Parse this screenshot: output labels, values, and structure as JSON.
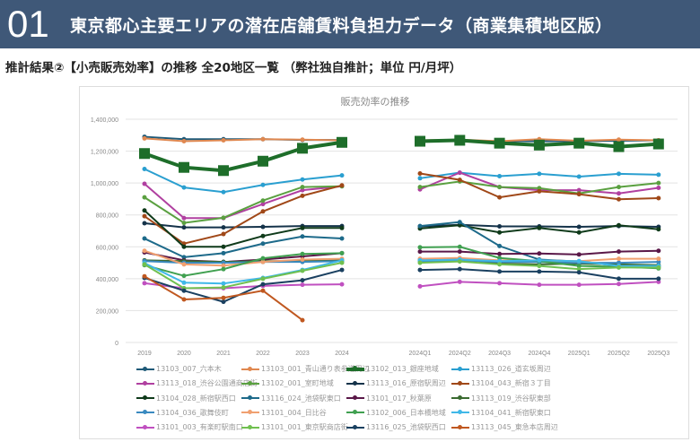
{
  "header": {
    "number": "01",
    "title": "東京都心主要エリアの潜在店舗賃料負担力データ（商業集積地区版）"
  },
  "subtitle": "推計結果②【小売販売効率】の推移 全20地区一覧 （弊社独自推計；単位 円/月坪）",
  "chart_data": {
    "type": "line",
    "title": "販売効率の推移",
    "xlabel": "",
    "ylabel": "",
    "ylim": [
      0,
      1400000
    ],
    "yticks": [
      0,
      200000,
      400000,
      600000,
      800000,
      1000000,
      1200000,
      1400000
    ],
    "ytick_labels": [
      "0",
      "200,000",
      "400,000",
      "600,000",
      "800,000",
      "1,000,000",
      "1,200,000",
      "1,400,000"
    ],
    "grid": true,
    "legend_position": "bottom",
    "groups": [
      {
        "categories": [
          "2019",
          "2020",
          "2021",
          "2022",
          "2023",
          "2024"
        ]
      },
      {
        "categories": [
          "2024Q1",
          "2024Q2",
          "2024Q3",
          "2024Q4",
          "2025Q1",
          "2025Q2",
          "2025Q3"
        ]
      }
    ],
    "series": [
      {
        "name": "13103_007_六本木",
        "color": "#1f5a78",
        "annual": [
          1290000,
          1275000,
          1275000,
          1275000,
          1270000,
          1270000
        ],
        "quarterly": [
          1265000,
          1268000,
          1262000,
          1262000,
          1262000,
          1265000,
          1268000
        ]
      },
      {
        "name": "13103_001_青山通り表参道周辺",
        "color": "#e08850",
        "annual": [
          1280000,
          1262000,
          1268000,
          1275000,
          1272000,
          1268000
        ],
        "quarterly": [
          1268000,
          1272000,
          1262000,
          1275000,
          1265000,
          1272000,
          1268000
        ]
      },
      {
        "name": "13102_013_銀座地域",
        "color": "#1e6e2a",
        "thick": true,
        "annual": [
          1185000,
          1098000,
          1078000,
          1137000,
          1218000,
          1255000
        ],
        "quarterly": [
          1262000,
          1268000,
          1250000,
          1238000,
          1250000,
          1228000,
          1245000
        ]
      },
      {
        "name": "13113_026_道玄坂周辺",
        "color": "#2a9fd0",
        "annual": [
          1088000,
          972000,
          943000,
          988000,
          1022000,
          1048000
        ],
        "quarterly": [
          1030000,
          1065000,
          1043000,
          1058000,
          1040000,
          1058000,
          1052000
        ]
      },
      {
        "name": "13113_018_渋谷公園通商店街",
        "color": "#b040a0",
        "annual": [
          995000,
          780000,
          780000,
          868000,
          955000,
          980000
        ],
        "quarterly": [
          960000,
          1065000,
          975000,
          955000,
          955000,
          935000,
          970000
        ]
      },
      {
        "name": "13102_001_室町地域",
        "color": "#5aa040",
        "annual": [
          910000,
          750000,
          782000,
          890000,
          975000,
          980000
        ],
        "quarterly": [
          975000,
          1010000,
          975000,
          968000,
          935000,
          975000,
          1000000
        ]
      },
      {
        "name": "13113_016_原宿駅周辺",
        "color": "#15334a",
        "annual": [
          748000,
          722000,
          722000,
          725000,
          730000,
          730000
        ],
        "quarterly": [
          728000,
          738000,
          728000,
          728000,
          725000,
          730000,
          725000
        ]
      },
      {
        "name": "13104_043_新宿３丁目",
        "color": "#a04818",
        "annual": [
          792000,
          620000,
          680000,
          822000,
          920000,
          985000
        ],
        "quarterly": [
          1060000,
          1020000,
          910000,
          948000,
          930000,
          898000,
          905000
        ]
      },
      {
        "name": "13104_028_新宿駅西口",
        "color": "#0f3a1a",
        "annual": [
          828000,
          600000,
          600000,
          668000,
          718000,
          718000
        ],
        "quarterly": [
          715000,
          735000,
          690000,
          718000,
          690000,
          735000,
          710000
        ]
      },
      {
        "name": "13116_024_池袋駅東口",
        "color": "#1d6a8a",
        "annual": [
          652000,
          535000,
          560000,
          620000,
          665000,
          652000
        ],
        "quarterly": [
          730000,
          755000,
          605000,
          520000,
          508000,
          480000,
          475000
        ]
      },
      {
        "name": "13101_017_秋葉原",
        "color": "#5a1848",
        "annual": [
          565000,
          515000,
          505000,
          520000,
          540000,
          560000
        ],
        "quarterly": [
          570000,
          570000,
          555000,
          558000,
          552000,
          570000,
          575000
        ]
      },
      {
        "name": "13113_019_渋谷駅東部",
        "color": "#3a6a30",
        "annual": [
          515000,
          510000,
          505000,
          510000,
          510000,
          515000
        ],
        "quarterly": [
          520000,
          525000,
          495000,
          490000,
          495000,
          490000,
          485000
        ]
      },
      {
        "name": "13104_036_歌舞伎町",
        "color": "#3a8ac0",
        "annual": [
          510000,
          500000,
          500000,
          505000,
          505000,
          510000
        ],
        "quarterly": [
          510000,
          515000,
          505000,
          505000,
          500000,
          500000,
          505000
        ]
      },
      {
        "name": "13101_004_日比谷",
        "color": "#f0a070",
        "annual": [
          575000,
          490000,
          482000,
          505000,
          520000,
          525000
        ],
        "quarterly": [
          525000,
          530000,
          515000,
          515000,
          510000,
          525000,
          525000
        ]
      },
      {
        "name": "13102_006_日本橋地域",
        "color": "#40a050",
        "annual": [
          485000,
          418000,
          460000,
          528000,
          555000,
          560000
        ],
        "quarterly": [
          597000,
          600000,
          530000,
          510000,
          480000,
          475000,
          465000
        ]
      },
      {
        "name": "13104_041_新宿駅東口",
        "color": "#40b8e8",
        "annual": [
          498000,
          375000,
          370000,
          405000,
          455000,
          515000
        ],
        "quarterly": [
          515000,
          520000,
          510000,
          515000,
          510000,
          480000,
          480000
        ]
      },
      {
        "name": "13101_003_有楽町駅南口",
        "color": "#c050c0",
        "annual": [
          372000,
          340000,
          340000,
          355000,
          362000,
          365000
        ],
        "quarterly": [
          352000,
          380000,
          372000,
          362000,
          362000,
          367000,
          380000
        ]
      },
      {
        "name": "13101_001_東京駅商店街",
        "color": "#70c050",
        "annual": [
          490000,
          340000,
          345000,
          400000,
          450000,
          500000
        ],
        "quarterly": [
          500000,
          508000,
          490000,
          480000,
          460000,
          470000,
          470000
        ]
      },
      {
        "name": "13116_025_池袋駅西口",
        "color": "#1a4060",
        "annual": [
          405000,
          325000,
          255000,
          365000,
          390000,
          455000
        ],
        "quarterly": [
          455000,
          460000,
          445000,
          445000,
          440000,
          400000,
          400000
        ]
      },
      {
        "name": "13113_045_東急本店周辺",
        "color": "#c05820",
        "annual": [
          415000,
          270000,
          280000,
          325000,
          140000,
          null
        ],
        "quarterly": [
          null,
          null,
          null,
          null,
          null,
          null,
          null
        ]
      }
    ]
  }
}
